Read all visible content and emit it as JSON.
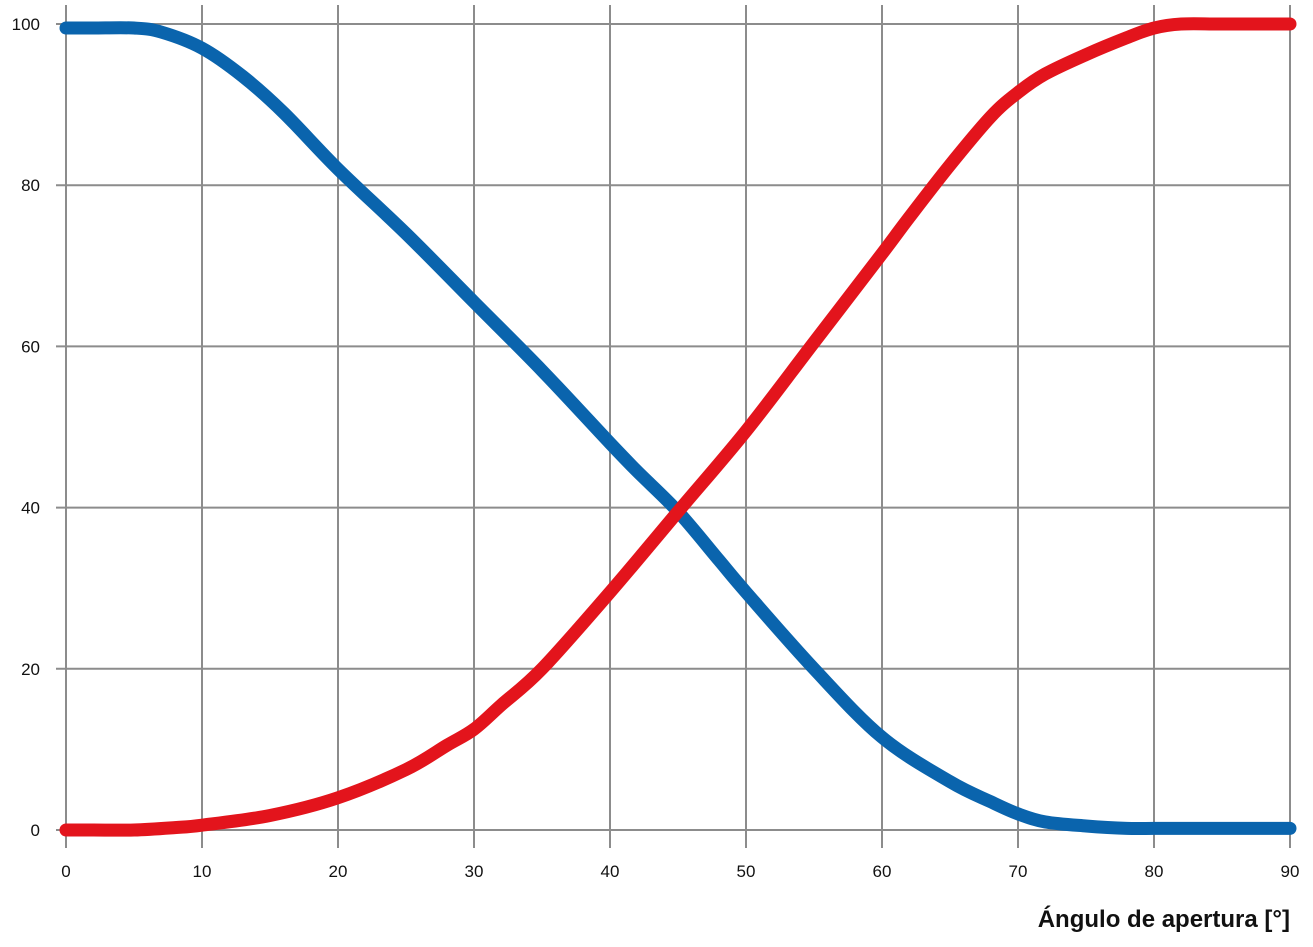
{
  "chart_data": {
    "type": "line",
    "title": "",
    "xlabel": "Ángulo de apertura [°]",
    "ylabel": "",
    "xlim": [
      0,
      90
    ],
    "ylim": [
      0,
      100
    ],
    "x_ticks": [
      0,
      10,
      20,
      30,
      40,
      50,
      60,
      70,
      80,
      90
    ],
    "y_ticks": [
      0,
      20,
      40,
      60,
      80,
      100
    ],
    "grid": true,
    "legend": "none",
    "series": [
      {
        "color": "#0a64ad",
        "x": [
          0,
          2,
          5,
          7,
          10,
          13,
          16,
          20,
          25,
          30,
          35,
          40,
          42,
          45,
          48,
          50,
          55,
          60,
          65,
          68,
          70,
          72,
          75,
          78,
          80,
          82,
          85,
          90
        ],
        "y": [
          99.5,
          99.5,
          99.5,
          99,
          97,
          93.5,
          89,
          82,
          74,
          65.5,
          57,
          48,
          44.5,
          39.5,
          33.5,
          29.5,
          20,
          11.5,
          6,
          3.5,
          2,
          1,
          0.5,
          0.2,
          0.2,
          0.2,
          0.2,
          0.2
        ]
      },
      {
        "color": "#e3141c",
        "x": [
          0,
          2,
          5,
          8,
          10,
          15,
          20,
          25,
          28,
          30,
          32,
          35,
          40,
          45,
          50,
          55,
          60,
          62,
          65,
          68,
          70,
          72,
          75,
          78,
          80,
          82,
          85,
          90
        ],
        "y": [
          0,
          0,
          0,
          0.3,
          0.6,
          1.8,
          4,
          7.5,
          10.5,
          12.5,
          15.5,
          20,
          29.5,
          39.5,
          49.5,
          60.5,
          71.5,
          76,
          82.5,
          88.5,
          91.5,
          93.8,
          96.2,
          98.3,
          99.5,
          100,
          100,
          100
        ]
      }
    ]
  }
}
